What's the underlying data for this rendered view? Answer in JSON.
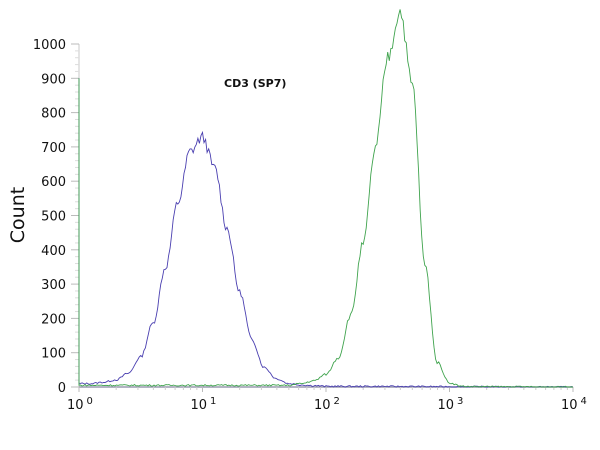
{
  "chart_data": {
    "type": "line",
    "title": "CD3 (SP7)",
    "xlabel": "",
    "ylabel": "Count",
    "x_scale": "log",
    "xlim": [
      1,
      10000
    ],
    "ylim": [
      0,
      1000
    ],
    "x_ticks": [
      {
        "base": "10",
        "exp": "0",
        "value": 1
      },
      {
        "base": "10",
        "exp": "1",
        "value": 10
      },
      {
        "base": "10",
        "exp": "2",
        "value": 100
      },
      {
        "base": "10",
        "exp": "3",
        "value": 1000
      },
      {
        "base": "10",
        "exp": "4",
        "value": 10000
      }
    ],
    "y_ticks": [
      "0",
      "100",
      "200",
      "300",
      "400",
      "500",
      "600",
      "700",
      "800",
      "900",
      "1000"
    ],
    "grid": false,
    "series": [
      {
        "color": "#4a3fb0",
        "x": [
          1,
          1,
          1.26,
          1.58,
          2,
          2.51,
          3.16,
          3.98,
          5.01,
          6.31,
          7.94,
          10,
          12.6,
          15.8,
          20,
          25.1,
          31.6,
          39.8,
          50.1,
          63.1,
          79.4,
          100,
          10000
        ],
        "y": [
          900,
          10,
          10,
          14,
          21,
          40,
          88,
          186,
          348,
          537,
          687,
          728,
          637,
          462,
          277,
          138,
          57,
          24,
          10,
          6,
          4,
          2,
          0
        ]
      },
      {
        "color": "#3fa34d",
        "x": [
          1,
          1,
          50.1,
          63.1,
          79.4,
          100,
          126,
          158,
          200,
          251,
          316,
          398,
          501,
          631,
          794,
          1000,
          1259,
          1585,
          10000
        ],
        "y": [
          900,
          5,
          5,
          10,
          18,
          37,
          85,
          208,
          418,
          696,
          960,
          1096,
          880,
          357,
          72,
          12,
          2,
          1,
          0
        ]
      }
    ]
  }
}
